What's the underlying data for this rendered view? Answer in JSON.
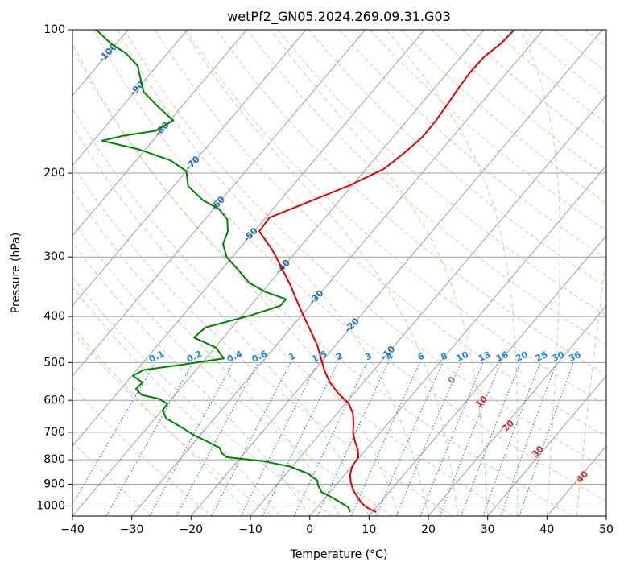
{
  "chart_data": {
    "type": "line",
    "title": "wetPf2_GN05.2024.269.09.31.G03",
    "xlabel": "Temperature (°C)",
    "ylabel": "Pressure (hPa)",
    "xlim": [
      -40,
      50
    ],
    "ylim": [
      1050,
      100
    ],
    "yscale": "log",
    "x_ticks": [
      -40,
      -30,
      -20,
      -10,
      0,
      10,
      20,
      30,
      40,
      50
    ],
    "y_ticks": [
      100,
      200,
      300,
      400,
      500,
      600,
      700,
      800,
      900,
      1000
    ],
    "grid": true,
    "legend": "none",
    "colors": {
      "temperature": "#e00000",
      "dewpoint": "#008000",
      "isotherm": "#a0a0a0",
      "dry_adiabat": "#f4a582",
      "moist_adiabat": "#9cd49c",
      "mixing_ratio": "#1f77d4",
      "isotherm_label": "#1f6fb0",
      "mixing_label": "#1e88e5",
      "moist_label": "#d62728",
      "moist_label_zero": "#808080"
    },
    "series": [
      {
        "role": "temperature",
        "points": [
          [
            11.2,
            1030
          ],
          [
            9.8,
            1010
          ],
          [
            8.7,
            985
          ],
          [
            8.0,
            955
          ],
          [
            7.3,
            925
          ],
          [
            6.9,
            890
          ],
          [
            6.8,
            860
          ],
          [
            7.1,
            830
          ],
          [
            7.6,
            810
          ],
          [
            8.2,
            790
          ],
          [
            8.1,
            760
          ],
          [
            7.6,
            730
          ],
          [
            7.3,
            700
          ],
          [
            7.4,
            670
          ],
          [
            7.3,
            640
          ],
          [
            6.6,
            610
          ],
          [
            4.8,
            580
          ],
          [
            3.4,
            550
          ],
          [
            2.5,
            520
          ],
          [
            1.9,
            490
          ],
          [
            1.3,
            460
          ],
          [
            0.2,
            430
          ],
          [
            -1.0,
            400
          ],
          [
            -2.2,
            370
          ],
          [
            -3.2,
            345
          ],
          [
            -4.8,
            315
          ],
          [
            -6.3,
            290
          ],
          [
            -8.5,
            265
          ],
          [
            -6.8,
            248
          ],
          [
            -1.0,
            232
          ],
          [
            6.8,
            212
          ],
          [
            12.5,
            196
          ],
          [
            15.8,
            182
          ],
          [
            19.0,
            168
          ],
          [
            21.3,
            155
          ],
          [
            23.3,
            143
          ],
          [
            25.2,
            132
          ],
          [
            27.0,
            123
          ],
          [
            29.4,
            114
          ],
          [
            32.2,
            107
          ],
          [
            34.5,
            100
          ]
        ]
      },
      {
        "role": "dewpoint",
        "points": [
          [
            6.8,
            1030
          ],
          [
            6.5,
            1005
          ],
          [
            5.3,
            985
          ],
          [
            3.8,
            960
          ],
          [
            2.0,
            935
          ],
          [
            1.4,
            905
          ],
          [
            1.3,
            885
          ],
          [
            -0.3,
            855
          ],
          [
            -3.5,
            825
          ],
          [
            -8.0,
            805
          ],
          [
            -14.0,
            790
          ],
          [
            -14.8,
            775
          ],
          [
            -15.2,
            755
          ],
          [
            -17.0,
            735
          ],
          [
            -19.5,
            710
          ],
          [
            -21.5,
            685
          ],
          [
            -24.2,
            655
          ],
          [
            -24.8,
            630
          ],
          [
            -24.0,
            610
          ],
          [
            -25.5,
            595
          ],
          [
            -28.3,
            585
          ],
          [
            -29.3,
            568
          ],
          [
            -28.2,
            550
          ],
          [
            -29.8,
            533
          ],
          [
            -28.0,
            518
          ],
          [
            -21.5,
            505
          ],
          [
            -14.5,
            490
          ],
          [
            -15.8,
            465
          ],
          [
            -19.5,
            443
          ],
          [
            -17.6,
            422
          ],
          [
            -10.0,
            398
          ],
          [
            -5.0,
            380
          ],
          [
            -4.0,
            368
          ],
          [
            -7.5,
            355
          ],
          [
            -10.2,
            340
          ],
          [
            -12.0,
            320
          ],
          [
            -14.0,
            300
          ],
          [
            -14.6,
            282
          ],
          [
            -13.8,
            265
          ],
          [
            -13.9,
            250
          ],
          [
            -15.3,
            238
          ],
          [
            -18.0,
            228
          ],
          [
            -20.5,
            213
          ],
          [
            -20.8,
            198
          ],
          [
            -23.5,
            188
          ],
          [
            -29.0,
            178
          ],
          [
            -35.0,
            171
          ],
          [
            -31.5,
            167
          ],
          [
            -26.0,
            163
          ],
          [
            -23.0,
            155
          ],
          [
            -25.6,
            145
          ],
          [
            -28.0,
            135
          ],
          [
            -28.5,
            127
          ],
          [
            -29.0,
            119
          ],
          [
            -31.0,
            112
          ],
          [
            -33.5,
            107
          ],
          [
            -36.0,
            100
          ]
        ]
      }
    ],
    "isotherm_labels": [
      {
        "label": "-100",
        "t": -100,
        "p": 112
      },
      {
        "label": "-90",
        "t": -90,
        "p": 133
      },
      {
        "label": "-80",
        "t": -80,
        "p": 162
      },
      {
        "label": "-70",
        "t": -70,
        "p": 191
      },
      {
        "label": "-60",
        "t": -60,
        "p": 232
      },
      {
        "label": "-50",
        "t": -50,
        "p": 270
      },
      {
        "label": "-40",
        "t": -40,
        "p": 315
      },
      {
        "label": "-30",
        "t": -30,
        "p": 365
      },
      {
        "label": "-20",
        "t": -20,
        "p": 418
      },
      {
        "label": "-10",
        "t": -10,
        "p": 478
      }
    ],
    "mixing_ratio_labels": [
      "0.1",
      "0.2",
      "0.4",
      "0.6",
      "1",
      "1.5",
      "2",
      "3",
      "4",
      "6",
      "8",
      "10",
      "13",
      "16",
      "20",
      "25",
      "30",
      "36"
    ],
    "moist_adiabat_labels": [
      "0",
      "10",
      "20",
      "30",
      "40"
    ]
  }
}
